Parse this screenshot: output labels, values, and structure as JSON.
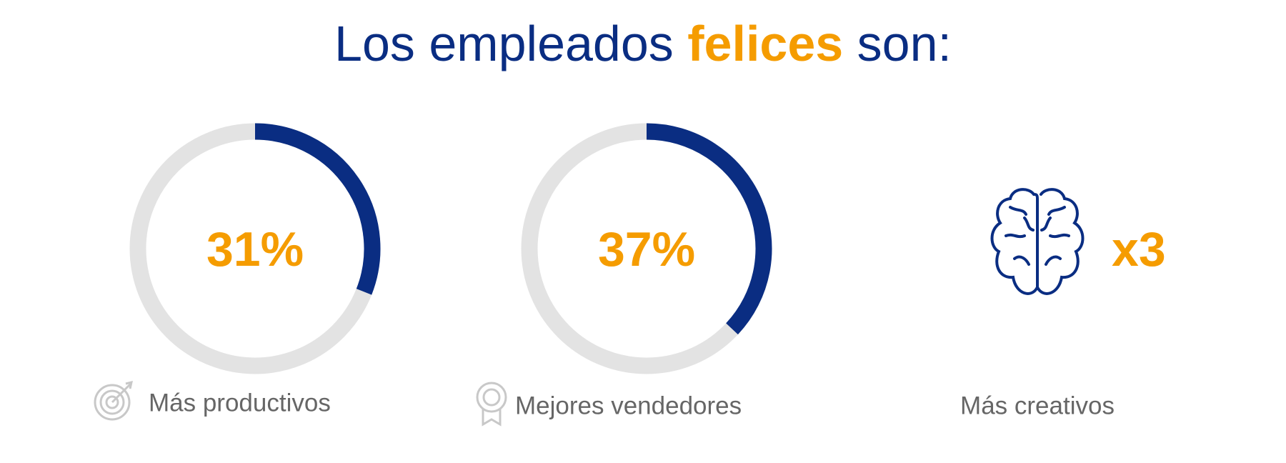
{
  "title": {
    "parts": [
      "Los empleados",
      "felices",
      "son:"
    ]
  },
  "stats": [
    {
      "value": 31,
      "value_label": "31%",
      "caption": "Más productivos"
    },
    {
      "value": 37,
      "value_label": "37%",
      "caption": "Mejores vendedores"
    },
    {
      "value": 3,
      "value_label": "x3",
      "caption": "Más creativos"
    }
  ]
}
